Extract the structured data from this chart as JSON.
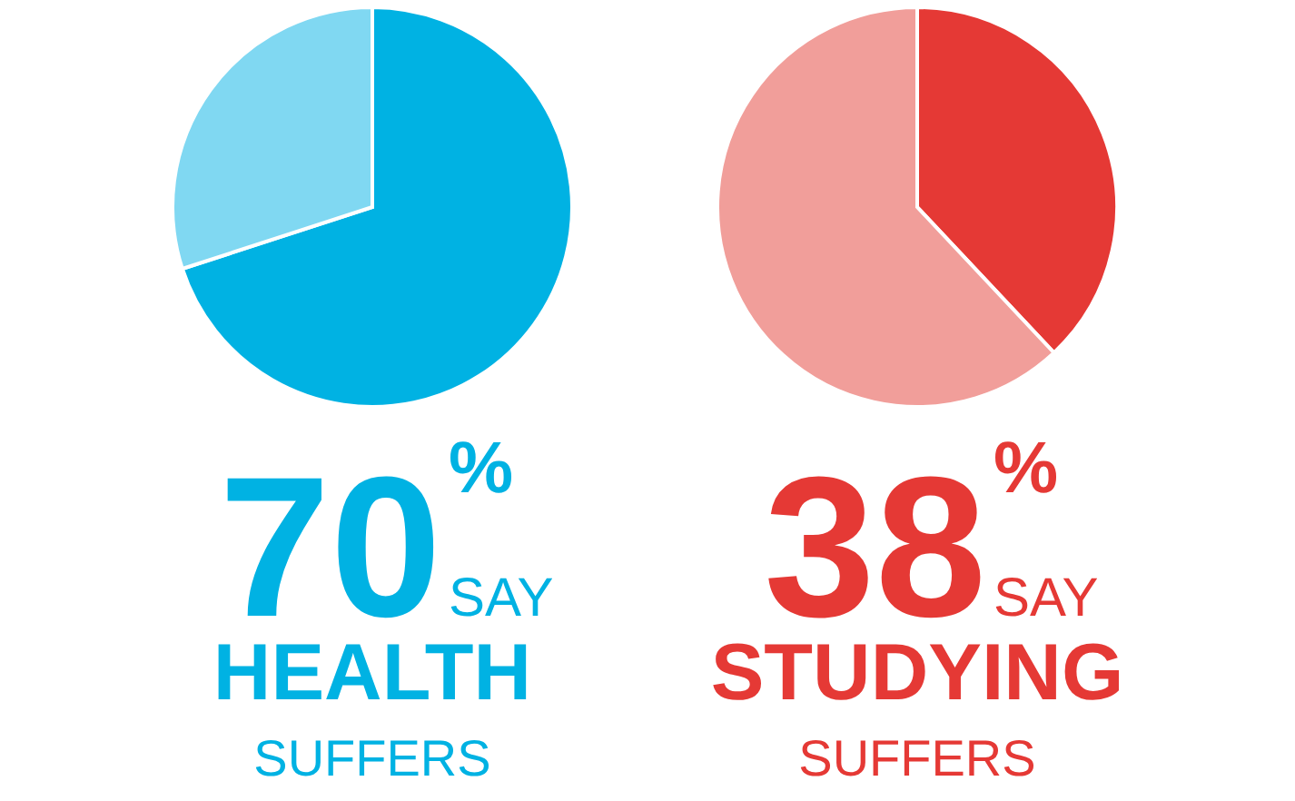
{
  "chart_data": [
    {
      "type": "pie",
      "categories": [
        null,
        null
      ],
      "values": [
        70,
        30
      ],
      "colors": [
        "#00b2e3",
        "#80d8f2"
      ],
      "annotations": [
        "70",
        "%",
        "SAY",
        "HEALTH",
        "SUFFERS"
      ]
    },
    {
      "type": "pie",
      "categories": [
        null,
        null
      ],
      "values": [
        38,
        62
      ],
      "colors": [
        "#e53935",
        "#f19e9a"
      ],
      "annotations": [
        "38",
        "%",
        "SAY",
        "STUDYING",
        "SUFFERS"
      ]
    }
  ]
}
